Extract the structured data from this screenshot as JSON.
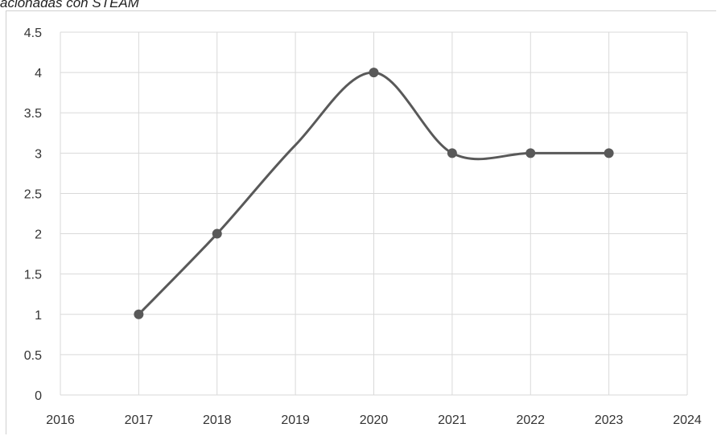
{
  "caption": "acionadas con STEAM",
  "chart_data": {
    "type": "line",
    "title": "",
    "xlabel": "",
    "ylabel": "",
    "x": [
      2017,
      2018,
      2019,
      2020,
      2021,
      2022,
      2023
    ],
    "series": [
      {
        "values": [
          1,
          2,
          3.1,
          4,
          3,
          3,
          3
        ],
        "markers": [
          true,
          true,
          false,
          true,
          true,
          true,
          true
        ]
      }
    ],
    "xlim": [
      2016,
      2024
    ],
    "ylim": [
      0,
      4.5
    ],
    "xticks": [
      "2016",
      "2017",
      "2018",
      "2019",
      "2020",
      "2021",
      "2022",
      "2023",
      "2024"
    ],
    "yticks": [
      "0",
      "0.5",
      "1",
      "1.5",
      "2",
      "2.5",
      "3",
      "3.5",
      "4",
      "4.5"
    ],
    "grid": true,
    "smooth": true,
    "line_color": "#595959",
    "grid_color": "#d9d9d9"
  }
}
